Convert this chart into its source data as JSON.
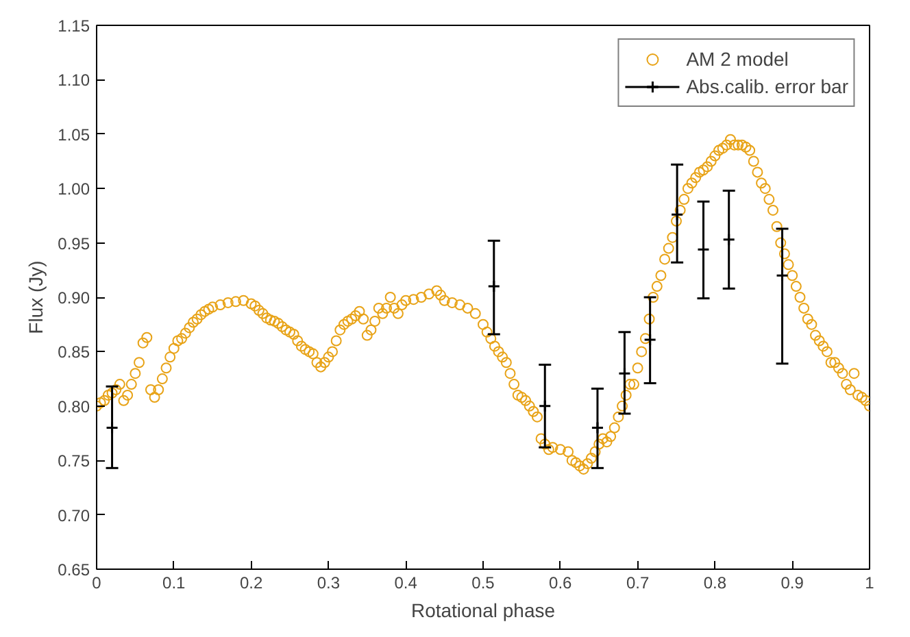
{
  "chart_data": {
    "type": "scatter",
    "xlabel": "Rotational phase",
    "ylabel": "Flux (Jy)",
    "xlim": [
      0,
      1
    ],
    "ylim": [
      0.65,
      1.15
    ],
    "xticks": [
      0,
      0.1,
      0.2,
      0.3,
      0.4,
      0.5,
      0.6,
      0.7,
      0.8,
      0.9,
      1
    ],
    "yticks": [
      {
        "value": 0.65,
        "label": "0.65"
      },
      {
        "value": 0.7,
        "label": "0.70"
      },
      {
        "value": 0.75,
        "label": "0.75"
      },
      {
        "value": 0.8,
        "label": "0.80"
      },
      {
        "value": 0.85,
        "label": "0.85"
      },
      {
        "value": 0.9,
        "label": "0.90"
      },
      {
        "value": 0.95,
        "label": "0.95"
      },
      {
        "value": 1.0,
        "label": "1.00"
      },
      {
        "value": 1.05,
        "label": "1.05"
      },
      {
        "value": 1.1,
        "label": "1.10"
      },
      {
        "value": 1.15,
        "label": "1.15"
      }
    ],
    "grid": false,
    "legend": "top right",
    "series": [
      {
        "name": "AM 2 model",
        "color": "#e8a317",
        "marker": "circle",
        "x": [
          0.0,
          0.005,
          0.01,
          0.015,
          0.02,
          0.025,
          0.03,
          0.035,
          0.04,
          0.045,
          0.05,
          0.055,
          0.06,
          0.065,
          0.07,
          0.075,
          0.08,
          0.085,
          0.09,
          0.095,
          0.1,
          0.105,
          0.11,
          0.115,
          0.12,
          0.125,
          0.13,
          0.135,
          0.14,
          0.145,
          0.15,
          0.16,
          0.17,
          0.18,
          0.19,
          0.2,
          0.205,
          0.21,
          0.215,
          0.22,
          0.225,
          0.23,
          0.235,
          0.24,
          0.245,
          0.25,
          0.255,
          0.26,
          0.265,
          0.27,
          0.275,
          0.28,
          0.285,
          0.29,
          0.295,
          0.3,
          0.305,
          0.31,
          0.315,
          0.32,
          0.325,
          0.33,
          0.335,
          0.34,
          0.345,
          0.35,
          0.355,
          0.36,
          0.365,
          0.37,
          0.375,
          0.38,
          0.385,
          0.39,
          0.395,
          0.4,
          0.41,
          0.42,
          0.43,
          0.44,
          0.445,
          0.45,
          0.46,
          0.47,
          0.48,
          0.49,
          0.5,
          0.505,
          0.51,
          0.515,
          0.52,
          0.525,
          0.53,
          0.535,
          0.54,
          0.545,
          0.55,
          0.555,
          0.56,
          0.565,
          0.57,
          0.575,
          0.58,
          0.585,
          0.59,
          0.6,
          0.61,
          0.615,
          0.62,
          0.625,
          0.63,
          0.635,
          0.64,
          0.645,
          0.65,
          0.655,
          0.66,
          0.665,
          0.67,
          0.675,
          0.68,
          0.685,
          0.69,
          0.695,
          0.7,
          0.705,
          0.71,
          0.715,
          0.72,
          0.725,
          0.73,
          0.735,
          0.74,
          0.745,
          0.75,
          0.755,
          0.76,
          0.765,
          0.77,
          0.775,
          0.78,
          0.785,
          0.79,
          0.795,
          0.8,
          0.805,
          0.81,
          0.815,
          0.82,
          0.825,
          0.83,
          0.835,
          0.84,
          0.845,
          0.85,
          0.855,
          0.86,
          0.865,
          0.87,
          0.875,
          0.88,
          0.885,
          0.89,
          0.895,
          0.9,
          0.905,
          0.91,
          0.915,
          0.92,
          0.925,
          0.93,
          0.935,
          0.94,
          0.945,
          0.95,
          0.955,
          0.96,
          0.965,
          0.97,
          0.975,
          0.98,
          0.985,
          0.99,
          0.995,
          1.0
        ],
        "values": [
          0.8,
          0.803,
          0.805,
          0.81,
          0.812,
          0.815,
          0.82,
          0.805,
          0.81,
          0.82,
          0.83,
          0.84,
          0.858,
          0.863,
          0.815,
          0.808,
          0.815,
          0.825,
          0.835,
          0.845,
          0.853,
          0.86,
          0.862,
          0.867,
          0.872,
          0.877,
          0.88,
          0.884,
          0.887,
          0.889,
          0.891,
          0.893,
          0.895,
          0.896,
          0.897,
          0.894,
          0.892,
          0.888,
          0.885,
          0.881,
          0.879,
          0.878,
          0.876,
          0.873,
          0.87,
          0.868,
          0.866,
          0.86,
          0.855,
          0.852,
          0.85,
          0.848,
          0.84,
          0.836,
          0.84,
          0.845,
          0.85,
          0.86,
          0.87,
          0.875,
          0.878,
          0.88,
          0.883,
          0.887,
          0.88,
          0.865,
          0.87,
          0.878,
          0.89,
          0.885,
          0.89,
          0.9,
          0.89,
          0.885,
          0.893,
          0.897,
          0.898,
          0.9,
          0.903,
          0.906,
          0.902,
          0.897,
          0.895,
          0.893,
          0.89,
          0.885,
          0.875,
          0.868,
          0.862,
          0.855,
          0.85,
          0.845,
          0.84,
          0.83,
          0.82,
          0.81,
          0.808,
          0.805,
          0.8,
          0.795,
          0.79,
          0.77,
          0.765,
          0.76,
          0.762,
          0.76,
          0.758,
          0.75,
          0.748,
          0.745,
          0.742,
          0.747,
          0.752,
          0.758,
          0.765,
          0.77,
          0.767,
          0.772,
          0.78,
          0.79,
          0.8,
          0.81,
          0.82,
          0.82,
          0.835,
          0.85,
          0.862,
          0.88,
          0.9,
          0.91,
          0.92,
          0.935,
          0.945,
          0.955,
          0.97,
          0.98,
          0.99,
          1.0,
          1.005,
          1.01,
          1.015,
          1.017,
          1.02,
          1.025,
          1.03,
          1.035,
          1.037,
          1.04,
          1.045,
          1.04,
          1.04,
          1.04,
          1.038,
          1.035,
          1.025,
          1.015,
          1.005,
          1.0,
          0.99,
          0.98,
          0.965,
          0.95,
          0.94,
          0.93,
          0.92,
          0.91,
          0.9,
          0.89,
          0.88,
          0.875,
          0.865,
          0.86,
          0.855,
          0.85,
          0.84,
          0.84,
          0.835,
          0.83,
          0.82,
          0.815,
          0.83,
          0.81,
          0.808,
          0.805,
          0.8
        ]
      },
      {
        "name": "Abs.calib. error bar",
        "color": "#000000",
        "marker": "cross",
        "x": [
          0.02,
          0.514,
          0.58,
          0.648,
          0.683,
          0.716,
          0.751,
          0.785,
          0.818,
          0.887
        ],
        "values": [
          0.78,
          0.91,
          0.8,
          0.78,
          0.83,
          0.861,
          0.976,
          0.944,
          0.953,
          0.92
        ],
        "errors": [
          [
            0.743,
            0.818
          ],
          [
            0.866,
            0.952
          ],
          [
            0.762,
            0.838
          ],
          [
            0.743,
            0.816
          ],
          [
            0.793,
            0.868
          ],
          [
            0.821,
            0.9
          ],
          [
            0.932,
            1.022
          ],
          [
            0.899,
            0.988
          ],
          [
            0.908,
            0.998
          ],
          [
            0.839,
            0.963
          ]
        ]
      }
    ]
  }
}
